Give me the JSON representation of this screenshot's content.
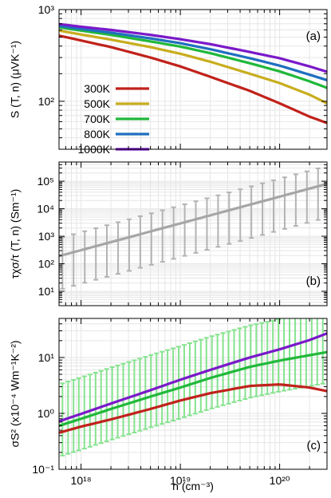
{
  "chart_data": [
    {
      "type": "line",
      "panel_label": "(a)",
      "ylabel": "S (T, n) (μVK⁻¹)",
      "yscale": "log",
      "xscale": "log",
      "ylim": [
        30,
        1000
      ],
      "yticks": [
        {
          "value": 100,
          "label": "10²"
        },
        {
          "value": 1000,
          "label": "10³"
        }
      ],
      "legend_position": "left-middle",
      "x": [
        6e+17,
        1e+18,
        2e+18,
        5e+18,
        1e+19,
        2e+19,
        5e+19,
        1e+20,
        2e+20,
        3e+20
      ],
      "series": [
        {
          "name": "300K",
          "color": "#c0221b",
          "values": [
            520,
            460,
            390,
            300,
            240,
            185,
            130,
            95,
            68,
            58
          ]
        },
        {
          "name": "500K",
          "color": "#c8ad1e",
          "values": [
            590,
            535,
            470,
            390,
            330,
            270,
            200,
            158,
            118,
            95
          ]
        },
        {
          "name": "700K",
          "color": "#20b83a",
          "values": [
            640,
            590,
            530,
            450,
            395,
            335,
            260,
            212,
            165,
            140
          ]
        },
        {
          "name": "800K",
          "color": "#1f6fbf",
          "values": [
            665,
            615,
            560,
            485,
            430,
            370,
            295,
            245,
            195,
            170
          ]
        },
        {
          "name": "1000K",
          "color": "#7a19c9",
          "values": [
            695,
            650,
            600,
            530,
            475,
            420,
            345,
            295,
            240,
            210
          ]
        }
      ]
    },
    {
      "type": "line",
      "panel_label": "(b)",
      "ylabel": "τχσ/τ (T, n) (Sm⁻¹)",
      "yscale": "log",
      "xscale": "log",
      "ylim": [
        3,
        500000
      ],
      "yticks": [
        {
          "value": 10,
          "label": "10¹"
        },
        {
          "value": 100,
          "label": "10²"
        },
        {
          "value": 1000,
          "label": "10³"
        },
        {
          "value": 10000,
          "label": "10⁴"
        },
        {
          "value": 100000,
          "label": "10⁵"
        }
      ],
      "series": [
        {
          "color": "#a6a6a6",
          "x": [
            6e+17,
            3e+20
          ],
          "values": [
            190,
            80000
          ]
        }
      ],
      "errorbars": {
        "color": "#b3b3b3",
        "low_factor": 0.06,
        "high_factor": 4.5,
        "x": [
          6.5e+17,
          8.4e+17,
          1.09e+18,
          1.41e+18,
          1.82e+18,
          2.36e+18,
          3.05e+18,
          3.95e+18,
          5.11e+18,
          6.61e+18,
          8.55e+18,
          1.107e+19,
          1.432e+19,
          1.853e+19,
          2.397e+19,
          3.101e+19,
          4.013e+19,
          5.192e+19,
          6.718e+19,
          8.692e+19,
          1.1247e+20,
          1.4552e+20,
          1.8828e+20,
          2.4361e+20
        ]
      }
    },
    {
      "type": "line",
      "panel_label": "(c)",
      "xlabel": "n (cm⁻³)",
      "ylabel": "σS² (x10⁻⁴ Wm⁻¹K⁻²)",
      "yscale": "log",
      "xscale": "log",
      "ylim": [
        0.1,
        50
      ],
      "xlim": [
        6e+17,
        3e+20
      ],
      "yticks": [
        {
          "value": 0.1,
          "label": "10⁻¹"
        },
        {
          "value": 1,
          "label": "10⁰"
        },
        {
          "value": 10,
          "label": "10¹"
        }
      ],
      "xticks": [
        {
          "value": 1e+18,
          "label": "10¹⁸"
        },
        {
          "value": 1e+19,
          "label": "10¹⁹"
        },
        {
          "value": 1e+20,
          "label": "10²⁰"
        }
      ],
      "x": [
        6e+17,
        1e+18,
        2e+18,
        5e+18,
        1e+19,
        2e+19,
        5e+19,
        1e+20,
        2e+20,
        3e+20
      ],
      "series": [
        {
          "name": "300K",
          "color": "#c0221b",
          "values": [
            0.45,
            0.58,
            0.78,
            1.2,
            1.7,
            2.3,
            3.1,
            3.3,
            2.9,
            2.5
          ]
        },
        {
          "name": "700K",
          "color": "#20b83a",
          "values": [
            0.6,
            0.8,
            1.2,
            2.0,
            2.9,
            4.3,
            6.8,
            8.8,
            11.0,
            12.5
          ]
        },
        {
          "name": "1000K",
          "color": "#7a19c9",
          "values": [
            0.72,
            0.98,
            1.5,
            2.6,
            4.0,
            6.0,
            10.0,
            14.0,
            20.5,
            27.0
          ]
        }
      ],
      "errorbars": {
        "series": "700K",
        "color": "#86e38f",
        "low_factor": 0.28,
        "high_factor": 5.5,
        "x": [
          6.5e+17,
          7.4e+17,
          8.4e+17,
          9.5e+17,
          1.08e+18,
          1.23e+18,
          1.4e+18,
          1.59e+18,
          1.81e+18,
          2.06e+18,
          2.34e+18,
          2.66e+18,
          3.03e+18,
          3.44e+18,
          3.91e+18,
          4.45e+18,
          5.06e+18,
          5.75e+18,
          6.54e+18,
          7.44e+18,
          8.46e+18,
          9.62e+18,
          1.094e+19,
          1.244e+19,
          1.414e+19,
          1.608e+19,
          1.829e+19,
          2.08e+19,
          2.365e+19,
          2.69e+19,
          3.059e+19,
          3.479e+19,
          3.956e+19,
          4.499e+19,
          5.116e+19,
          5.818e+19,
          6.616e+19,
          7.524e+19,
          8.556e+19,
          9.73e+19,
          1.1065e+20,
          1.2583e+20,
          1.4309e+20,
          1.6272e+20,
          1.8505e+20,
          2.1043e+20,
          2.393e+20,
          2.7213e+20
        ]
      }
    }
  ]
}
